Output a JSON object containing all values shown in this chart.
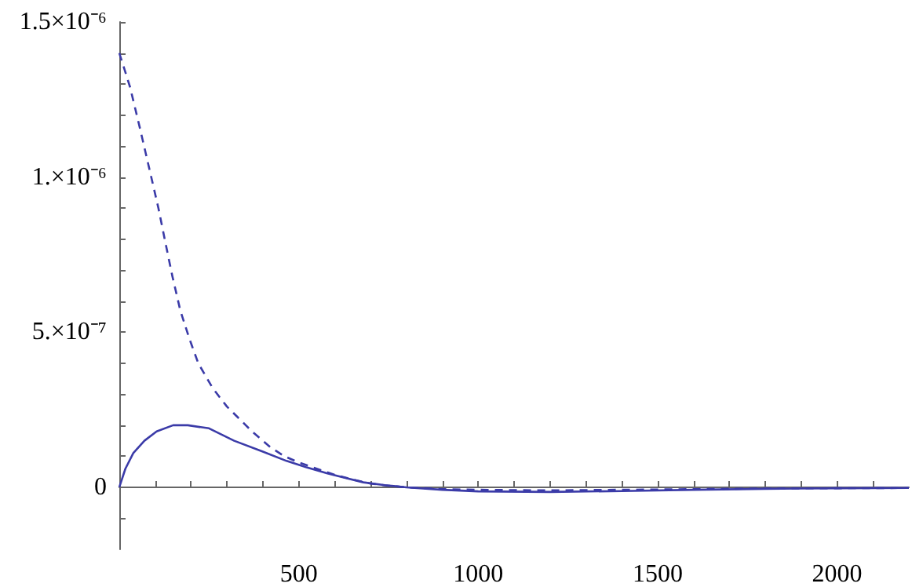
{
  "chart_data": {
    "type": "line",
    "marker": "none",
    "xlim": [
      0,
      2200
    ],
    "ylim": [
      -2e-07,
      1.5e-06
    ],
    "xticks": [
      {
        "value": 100,
        "label": null
      },
      {
        "value": 200,
        "label": null
      },
      {
        "value": 300,
        "label": null
      },
      {
        "value": 400,
        "label": null
      },
      500,
      {
        "value": 600,
        "label": null
      },
      {
        "value": 700,
        "label": null
      },
      {
        "value": 800,
        "label": null
      },
      {
        "value": 900,
        "label": null
      },
      1000,
      {
        "value": 1100,
        "label": null
      },
      {
        "value": 1200,
        "label": null
      },
      {
        "value": 1300,
        "label": null
      },
      {
        "value": 1400,
        "label": null
      },
      1500,
      {
        "value": 1600,
        "label": null
      },
      {
        "value": 1700,
        "label": null
      },
      {
        "value": 1800,
        "label": null
      },
      {
        "value": 1900,
        "label": null
      },
      2000,
      {
        "value": 2100,
        "label": null
      }
    ],
    "yticks": [
      {
        "value": -1e-07,
        "label": null
      },
      0,
      {
        "value": 1e-07,
        "label": null
      },
      {
        "value": 2e-07,
        "label": null
      },
      {
        "value": 3e-07,
        "label": null
      },
      {
        "value": 4e-07,
        "label": null
      },
      {
        "value": 5e-07,
        "label": "5.×10⁻⁷"
      },
      {
        "value": 6e-07,
        "label": null
      },
      {
        "value": 7e-07,
        "label": null
      },
      {
        "value": 8e-07,
        "label": null
      },
      {
        "value": 9e-07,
        "label": null
      },
      {
        "value": 1e-06,
        "label": "1.×10⁻⁶"
      },
      {
        "value": 1.1e-06,
        "label": null
      },
      {
        "value": 1.2e-06,
        "label": null
      },
      {
        "value": 1.3e-06,
        "label": null
      },
      {
        "value": 1.4e-06,
        "label": null
      },
      {
        "value": 1.5e-06,
        "label": "1.5×10⁻⁶"
      }
    ],
    "series": [
      {
        "color": "#3b3ba8",
        "line_style": "dashed",
        "x": [
          0,
          30,
          57,
          83,
          109,
          130,
          148,
          170,
          195,
          220,
          260,
          300,
          370,
          420,
          460,
          500,
          550,
          600,
          650,
          700,
          750,
          800,
          900,
          1000,
          1200,
          1500,
          1800,
          2200
        ],
        "values": [
          1.4e-06,
          1.29e-06,
          1.16e-06,
          1.03e-06,
          9e-07,
          7.8e-07,
          6.8e-07,
          5.7e-07,
          4.8e-07,
          4e-07,
          3.2e-07,
          2.6e-07,
          1.8e-07,
          1.3e-07,
          1e-07,
          8e-08,
          6e-08,
          4e-08,
          2.5e-08,
          1.2e-08,
          5e-09,
          0,
          -6e-09,
          -8e-09,
          -1e-08,
          -7e-09,
          -4e-09,
          -2e-09
        ]
      },
      {
        "color": "#3b3ba8",
        "line_style": "solid",
        "x": [
          0,
          17,
          39,
          70,
          104,
          150,
          191,
          250,
          320,
          400,
          466,
          520,
          580,
          630,
          680,
          740,
          800,
          900,
          1000,
          1200,
          1400,
          1600,
          1800,
          2000,
          2200
        ],
        "values": [
          0,
          6e-08,
          1.1e-07,
          1.5e-07,
          1.8e-07,
          2e-07,
          2e-07,
          1.9e-07,
          1.5e-07,
          1.15e-07,
          8.5e-08,
          6.5e-08,
          4.5e-08,
          3e-08,
          1.6e-08,
          7e-09,
          0,
          -8e-09,
          -1.3e-08,
          -1.5e-08,
          -1.2e-08,
          -8e-09,
          -5e-09,
          -3e-09,
          -2e-09
        ]
      }
    ]
  }
}
